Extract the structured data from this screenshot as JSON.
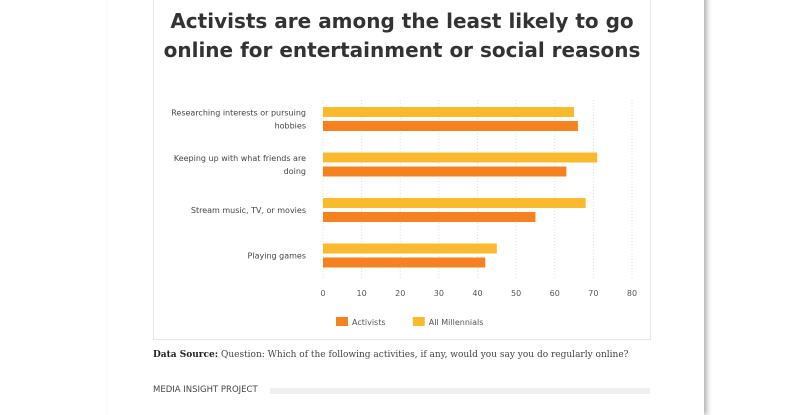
{
  "chart_data": {
    "type": "bar",
    "orientation": "horizontal",
    "title": "Activists are among the least likely to go online for entertainment or social reasons",
    "title_lines": [
      "Activists are among the least likely to go",
      "online for entertainment or social reasons"
    ],
    "categories": [
      [
        "Researching interests or pursuing",
        "hobbies"
      ],
      [
        "Keeping up with what friends are",
        "doing"
      ],
      [
        "Stream music, TV, or movies"
      ],
      [
        "Playing games"
      ]
    ],
    "series": [
      {
        "name": "All Millennials",
        "color": "#fbba2e",
        "values": [
          65,
          71,
          68,
          45
        ]
      },
      {
        "name": "Activists",
        "color": "#f5821f",
        "values": [
          66,
          63,
          55,
          42
        ]
      }
    ],
    "xlim": [
      0,
      80
    ],
    "xticks": [
      "0",
      "10",
      "20",
      "30",
      "40",
      "50",
      "60",
      "70",
      "80"
    ],
    "grid": true,
    "legend_position": "bottom",
    "legend_order": [
      "Activists",
      "All Millennials"
    ]
  },
  "source": {
    "label": "Data Source:",
    "text": " Question: Which of the following activities, if any, would you say you do regularly online?"
  },
  "footer": {
    "label": "MEDIA INSIGHT PROJECT"
  }
}
